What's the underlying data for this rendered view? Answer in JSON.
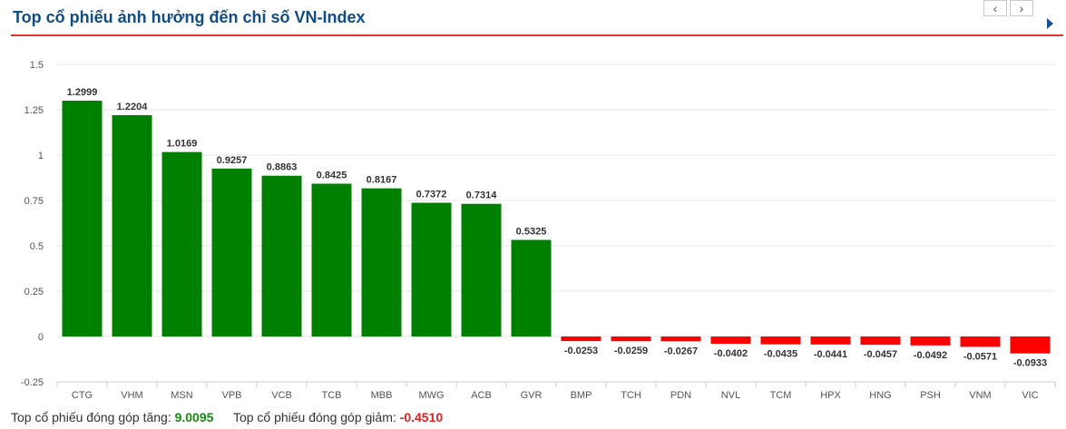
{
  "header": {
    "title": "Top cổ phiếu ảnh hưởng đến chỉ số VN-Index",
    "prev_label": "‹",
    "next_label": "›"
  },
  "chart_data": {
    "type": "bar",
    "title": "",
    "xlabel": "",
    "ylabel": "",
    "ylim": [
      -0.25,
      1.5
    ],
    "yticks": [
      "-0.25",
      "0",
      "0.25",
      "0.5",
      "0.75",
      "1",
      "1.25",
      "1.5"
    ],
    "grid": true,
    "categories": [
      "CTG",
      "VHM",
      "MSN",
      "VPB",
      "VCB",
      "TCB",
      "MBB",
      "MWG",
      "ACB",
      "GVR",
      "BMP",
      "TCH",
      "PDN",
      "NVL",
      "TCM",
      "HPX",
      "HNG",
      "PSH",
      "VNM",
      "VIC"
    ],
    "values": [
      1.2999,
      1.2204,
      1.0169,
      0.9257,
      0.8863,
      0.8425,
      0.8167,
      0.7372,
      0.7314,
      0.5325,
      -0.0253,
      -0.0259,
      -0.0267,
      -0.0402,
      -0.0435,
      -0.0441,
      -0.0457,
      -0.0492,
      -0.0571,
      -0.0933
    ],
    "labels": [
      "1.2999",
      "1.2204",
      "1.0169",
      "0.9257",
      "0.8863",
      "0.8425",
      "0.8167",
      "0.7372",
      "0.7314",
      "0.5325",
      "-0.0253",
      "-0.0259",
      "-0.0267",
      "-0.0402",
      "-0.0435",
      "-0.0441",
      "-0.0457",
      "-0.0492",
      "-0.0571",
      "-0.0933"
    ],
    "positive_color": "#008000",
    "negative_color": "#ff0000"
  },
  "footer": {
    "gain_label": "Top cổ phiếu đóng góp tăng:",
    "gain_value": "9.0095",
    "loss_label": "Top cổ phiếu đóng góp giảm:",
    "loss_value": "-0.4510"
  }
}
